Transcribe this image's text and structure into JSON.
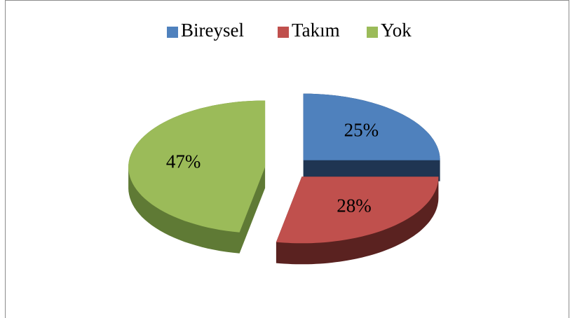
{
  "chart_data": {
    "type": "pie",
    "categories": [
      "Bireysel",
      "Takım",
      "Yok"
    ],
    "values": [
      25,
      28,
      47
    ],
    "value_labels": [
      "25%",
      "28%",
      "47%"
    ],
    "colors": [
      "#4f81bd",
      "#c0504d",
      "#9bbb59"
    ],
    "side_colors": [
      "#1f3552",
      "#5a2220",
      "#5f7a35"
    ],
    "legend": "top"
  }
}
